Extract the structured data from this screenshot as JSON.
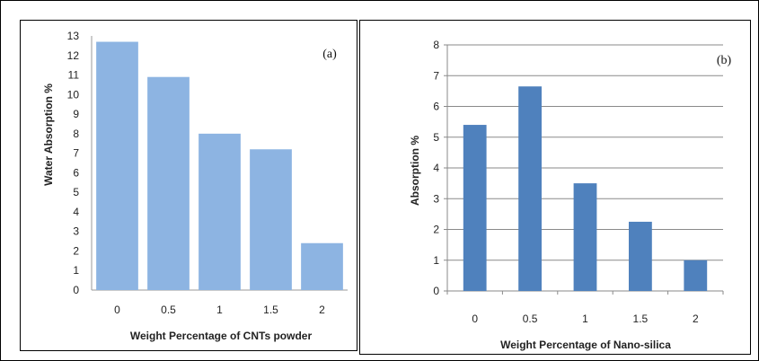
{
  "chart_data": [
    {
      "type": "bar",
      "panel_label": "(a)",
      "categories": [
        "0",
        "0.5",
        "1",
        "1.5",
        "2"
      ],
      "values": [
        12.7,
        10.9,
        8.0,
        7.2,
        2.4
      ],
      "ylim": [
        0,
        13
      ],
      "yticks": [
        0,
        1,
        2,
        3,
        4,
        5,
        6,
        7,
        8,
        9,
        10,
        11,
        12,
        13
      ],
      "xlabel": "Weight Percentage of CNTs powder",
      "ylabel": "Water Absorption %",
      "bar_color": "#8db4e2",
      "grid": false
    },
    {
      "type": "bar",
      "panel_label": "(b)",
      "categories": [
        "0",
        "0.5",
        "1",
        "1.5",
        "2"
      ],
      "values": [
        5.4,
        6.65,
        3.5,
        2.25,
        1.0
      ],
      "ylim": [
        0,
        8
      ],
      "yticks": [
        0,
        1,
        2,
        3,
        4,
        5,
        6,
        7,
        8
      ],
      "xlabel": "Weight Percentage of Nano-silica",
      "ylabel": "Absorption %",
      "bar_color": "#4f81bd",
      "grid": true
    }
  ]
}
